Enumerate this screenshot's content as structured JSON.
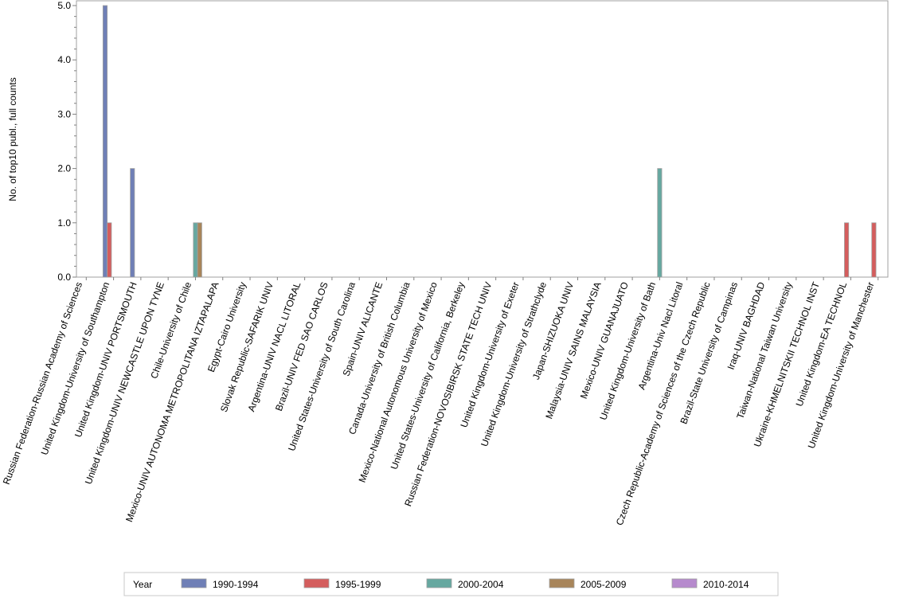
{
  "chart_data": {
    "type": "bar",
    "title": "",
    "xlabel": "",
    "ylabel": "No. of top10 publ., full counts",
    "ylim": [
      0,
      5
    ],
    "yticks": [
      "0.0",
      "1.0",
      "2.0",
      "3.0",
      "4.0",
      "5.0"
    ],
    "grid": false,
    "legend_position": "bottom",
    "legend_title": "Year",
    "categories": [
      "Russian Federation-Russian Academy of Sciences",
      "United Kingdom-University of Southampton",
      "United Kingdom-UNIV PORTSMOUTH",
      "United Kingdom-UNIV NEWCASTLE UPON TYNE",
      "Chile-University of Chile",
      "Mexico-UNIV AUTONOMA METROPOLITANA IZTAPALAPA",
      "Egypt-Cairo University",
      "Slovak Republic-SAFARIK UNIV",
      "Argentina-UNIV NACL LITORAL",
      "Brazil-UNIV FED SAO CARLOS",
      "United States-University of South Carolina",
      "Spain-UNIV ALICANTE",
      "Canada-University of British Columbia",
      "Mexico-National Autonomous University of Mexico",
      "United States-University of California, Berkeley",
      "Russian Federation-NOVOSIBIRSK STATE TECH UNIV",
      "United Kingdom-University of Exeter",
      "United Kingdom-University of Strathclyde",
      "Japan-SHIZUOKA UNIV",
      "Malaysia-UNIV SAINS MALAYSIA",
      "Mexico-UNIV GUANAJUATO",
      "United Kingdom-University of Bath",
      "Argentina-Univ Nacl Litoral",
      "Czech Republic-Academy of Sciences of the Czech Republic",
      "Brazil-State University of Campinas",
      "Iraq-UNIV BAGHDAD",
      "Taiwan-National Taiwan University",
      "Ukraine-KHMELNITSKII TECHNOL INST",
      "United Kingdom-EA TECHNOL",
      "United Kingdom-University of Manchester"
    ],
    "series": [
      {
        "name": "1990-1994",
        "color": "#6f7fb6",
        "values": [
          0,
          5,
          2,
          0,
          0,
          0,
          0,
          0,
          0,
          0,
          0,
          0,
          0,
          0,
          0,
          0,
          0,
          0,
          0,
          0,
          0,
          0,
          0,
          0,
          0,
          0,
          0,
          0,
          0,
          0
        ]
      },
      {
        "name": "1995-1999",
        "color": "#d45d5d",
        "values": [
          0,
          1,
          0,
          0,
          0,
          0,
          0,
          0,
          0,
          0,
          0,
          0,
          0,
          0,
          0,
          0,
          0,
          0,
          0,
          0,
          0,
          0,
          0,
          0,
          0,
          0,
          0,
          0,
          1,
          1
        ]
      },
      {
        "name": "2000-2004",
        "color": "#66a8a0",
        "values": [
          0,
          0,
          0,
          0,
          1,
          0,
          0,
          0,
          0,
          0,
          0,
          0,
          0,
          0,
          0,
          0,
          0,
          0,
          0,
          0,
          0,
          2,
          0,
          0,
          0,
          0,
          0,
          0,
          0,
          0
        ]
      },
      {
        "name": "2005-2009",
        "color": "#a8855a",
        "values": [
          0,
          0,
          0,
          0,
          1,
          0,
          0,
          0,
          0,
          0,
          0,
          0,
          0,
          0,
          0,
          0,
          0,
          0,
          0,
          0,
          0,
          0,
          0,
          0,
          0,
          0,
          0,
          0,
          0,
          0
        ]
      },
      {
        "name": "2010-2014",
        "color": "#b68acd",
        "values": [
          0,
          0,
          0,
          0,
          0,
          0,
          0,
          0,
          0,
          0,
          0,
          0,
          0,
          0,
          0,
          0,
          0,
          0,
          0,
          0,
          0,
          0,
          0,
          0,
          0,
          0,
          0,
          0,
          0,
          0
        ]
      }
    ]
  }
}
